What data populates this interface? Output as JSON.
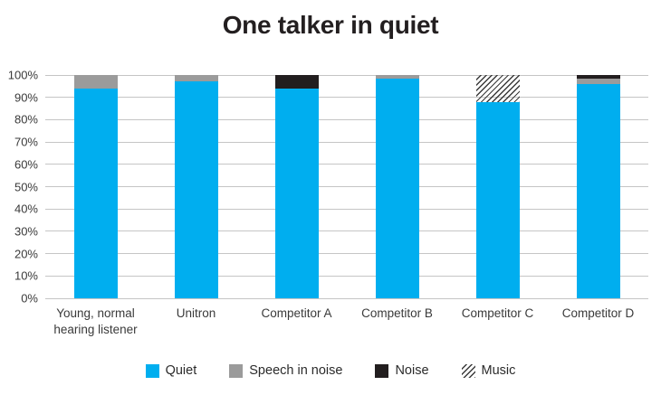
{
  "title": "One talker in quiet",
  "colors": {
    "quiet": "#00AEEF",
    "speech_in_noise": "#9B9B9B",
    "noise": "#221E1F",
    "hatch": "#3B3B3B",
    "gridline": "#C5C5C5",
    "text": "#3A3A3A",
    "title": "#231F20"
  },
  "chart_data": {
    "type": "bar",
    "stacked": true,
    "orientation": "vertical",
    "title": "One talker in quiet",
    "categories": [
      "Young, normal hearing listener",
      "Unitron",
      "Competitor A",
      "Competitor B",
      "Competitor C",
      "Competitor D"
    ],
    "series": [
      {
        "name": "Quiet",
        "key": "quiet",
        "values": [
          94,
          97,
          94,
          98.5,
          88,
          96
        ]
      },
      {
        "name": "Speech in noise",
        "key": "speech_in_noise",
        "values": [
          6,
          3,
          0,
          1.5,
          0,
          2.5
        ]
      },
      {
        "name": "Noise",
        "key": "noise",
        "values": [
          0,
          0,
          6,
          0,
          0,
          1.5
        ]
      },
      {
        "name": "Music",
        "key": "music",
        "values": [
          0,
          0,
          0,
          0,
          12,
          0
        ]
      }
    ],
    "xlabel": "",
    "ylabel": "",
    "ylim": [
      0,
      100
    ],
    "yticks": [
      "0%",
      "10%",
      "20%",
      "30%",
      "40%",
      "50%",
      "60%",
      "70%",
      "80%",
      "90%",
      "100%"
    ],
    "grid": true,
    "legend_position": "bottom"
  }
}
